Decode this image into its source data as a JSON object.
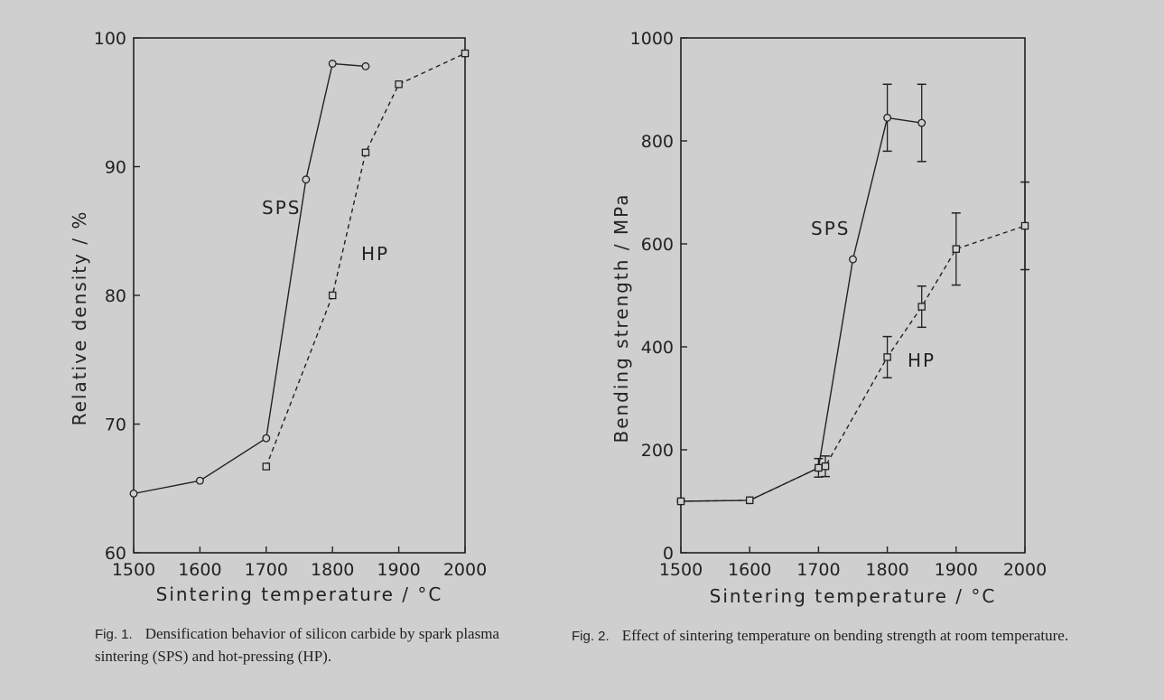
{
  "figure_1": {
    "caption_label": "Fig. 1.",
    "caption_text": "Densification behavior of silicon carbide by spark plasma sintering (SPS) and hot-pressing (HP)."
  },
  "figure_2": {
    "caption_label": "Fig. 2.",
    "caption_text": "Effect of sintering temperature on bending strength at room temperature."
  },
  "chart_data": [
    {
      "type": "line",
      "xlabel": "Sintering temperature / °C",
      "ylabel": "Relative density / %",
      "xlim": [
        1500,
        2000
      ],
      "ylim": [
        60,
        100
      ],
      "xticks": [
        1500,
        1600,
        1700,
        1800,
        1900,
        2000
      ],
      "yticks": [
        60,
        70,
        80,
        90,
        100
      ],
      "grid": false,
      "series": [
        {
          "name": "SPS",
          "marker": "circle",
          "linestyle": "solid",
          "x": [
            1500,
            1600,
            1700,
            1800,
            1850,
            1760
          ],
          "points": [
            [
              1500,
              64.6
            ],
            [
              1600,
              65.6
            ],
            [
              1700,
              68.9
            ],
            [
              1760,
              89.0
            ],
            [
              1800,
              98.0
            ],
            [
              1850,
              97.8
            ]
          ]
        },
        {
          "name": "HP",
          "marker": "square",
          "linestyle": "dashed",
          "points": [
            [
              1700,
              66.7
            ],
            [
              1800,
              80.0
            ],
            [
              1850,
              91.1
            ],
            [
              1900,
              96.4
            ],
            [
              2000,
              98.8
            ]
          ]
        }
      ]
    },
    {
      "type": "line",
      "xlabel": "Sintering temperature / °C",
      "ylabel": "Bending strength / MPa",
      "xlim": [
        1500,
        2000
      ],
      "ylim": [
        0,
        1000
      ],
      "xticks": [
        1500,
        1600,
        1700,
        1800,
        1900,
        2000
      ],
      "yticks": [
        0,
        200,
        400,
        600,
        800,
        1000
      ],
      "grid": false,
      "series": [
        {
          "name": "SPS",
          "marker": "circle",
          "linestyle": "solid",
          "points": [
            [
              1500,
              100
            ],
            [
              1600,
              102
            ],
            [
              1700,
              165
            ],
            [
              1750,
              570
            ],
            [
              1800,
              845
            ],
            [
              1850,
              835
            ]
          ],
          "error": [
            null,
            null,
            18,
            null,
            65,
            75
          ]
        },
        {
          "name": "HP",
          "marker": "square",
          "linestyle": "dashed",
          "points": [
            [
              1500,
              100
            ],
            [
              1600,
              102
            ],
            [
              1700,
              165
            ],
            [
              1710,
              168
            ],
            [
              1800,
              380
            ],
            [
              1850,
              478
            ],
            [
              1900,
              590
            ],
            [
              2000,
              635
            ]
          ],
          "error": [
            null,
            null,
            null,
            20,
            40,
            40,
            70,
            85
          ]
        }
      ]
    }
  ]
}
